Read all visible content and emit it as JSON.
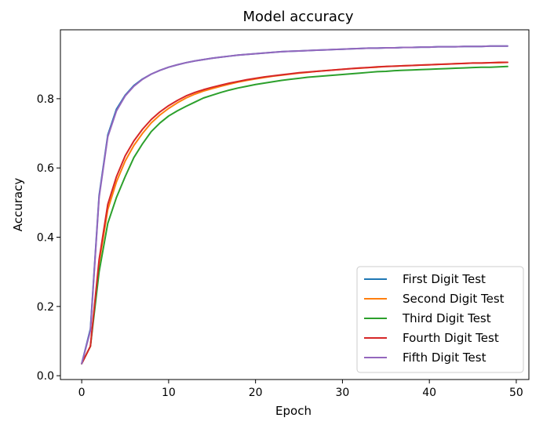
{
  "chart_data": {
    "type": "line",
    "title": "Model accuracy",
    "xlabel": "Epoch",
    "ylabel": "Accuracy",
    "xlim": [
      -2.45,
      51.45
    ],
    "ylim": [
      -0.011,
      0.999
    ],
    "xticks": [
      0,
      10,
      20,
      30,
      40,
      50
    ],
    "yticks": [
      0.0,
      0.2,
      0.4,
      0.6,
      0.8
    ],
    "grid": false,
    "legend_position": "bottom-right",
    "x": [
      0,
      1,
      2,
      3,
      4,
      5,
      6,
      7,
      8,
      9,
      10,
      11,
      12,
      13,
      14,
      15,
      16,
      17,
      18,
      19,
      20,
      21,
      22,
      23,
      24,
      25,
      26,
      27,
      28,
      29,
      30,
      31,
      32,
      33,
      34,
      35,
      36,
      37,
      38,
      39,
      40,
      41,
      42,
      43,
      44,
      45,
      46,
      47,
      48,
      49
    ],
    "series": [
      {
        "name": "First Digit Test",
        "color": "#1f77b4",
        "values": [
          0.035,
          0.135,
          0.52,
          0.695,
          0.77,
          0.81,
          0.838,
          0.857,
          0.871,
          0.882,
          0.891,
          0.898,
          0.904,
          0.909,
          0.913,
          0.917,
          0.92,
          0.923,
          0.926,
          0.928,
          0.93,
          0.932,
          0.934,
          0.936,
          0.937,
          0.938,
          0.939,
          0.94,
          0.941,
          0.942,
          0.943,
          0.944,
          0.945,
          0.946,
          0.946,
          0.947,
          0.947,
          0.948,
          0.948,
          0.949,
          0.949,
          0.95,
          0.95,
          0.95,
          0.951,
          0.951,
          0.951,
          0.952,
          0.952,
          0.952
        ]
      },
      {
        "name": "Second Digit Test",
        "color": "#ff7f0e",
        "values": [
          0.035,
          0.085,
          0.325,
          0.48,
          0.56,
          0.62,
          0.665,
          0.7,
          0.73,
          0.753,
          0.772,
          0.788,
          0.802,
          0.813,
          0.822,
          0.829,
          0.836,
          0.842,
          0.848,
          0.853,
          0.857,
          0.861,
          0.865,
          0.868,
          0.871,
          0.874,
          0.876,
          0.879,
          0.881,
          0.883,
          0.885,
          0.887,
          0.888,
          0.89,
          0.891,
          0.893,
          0.894,
          0.895,
          0.896,
          0.897,
          0.898,
          0.899,
          0.9,
          0.901,
          0.902,
          0.903,
          0.903,
          0.904,
          0.904,
          0.905
        ]
      },
      {
        "name": "Third Digit Test",
        "color": "#2ca02c",
        "values": [
          0.035,
          0.085,
          0.3,
          0.44,
          0.515,
          0.575,
          0.63,
          0.67,
          0.705,
          0.73,
          0.75,
          0.765,
          0.778,
          0.79,
          0.802,
          0.81,
          0.818,
          0.825,
          0.831,
          0.836,
          0.841,
          0.845,
          0.849,
          0.853,
          0.856,
          0.859,
          0.862,
          0.864,
          0.866,
          0.868,
          0.87,
          0.872,
          0.874,
          0.876,
          0.878,
          0.879,
          0.881,
          0.882,
          0.883,
          0.884,
          0.885,
          0.886,
          0.887,
          0.888,
          0.889,
          0.89,
          0.891,
          0.891,
          0.892,
          0.893
        ]
      },
      {
        "name": "Fourth Digit Test",
        "color": "#d62728",
        "values": [
          0.035,
          0.085,
          0.335,
          0.495,
          0.575,
          0.635,
          0.678,
          0.712,
          0.74,
          0.762,
          0.78,
          0.795,
          0.808,
          0.818,
          0.826,
          0.833,
          0.839,
          0.845,
          0.85,
          0.855,
          0.859,
          0.863,
          0.866,
          0.869,
          0.872,
          0.875,
          0.877,
          0.879,
          0.881,
          0.883,
          0.885,
          0.887,
          0.889,
          0.89,
          0.892,
          0.893,
          0.894,
          0.895,
          0.896,
          0.897,
          0.898,
          0.899,
          0.9,
          0.901,
          0.902,
          0.903,
          0.903,
          0.904,
          0.905,
          0.905
        ]
      },
      {
        "name": "Fifth Digit Test",
        "color": "#9467bd",
        "values": [
          0.035,
          0.13,
          0.515,
          0.69,
          0.765,
          0.808,
          0.836,
          0.856,
          0.871,
          0.882,
          0.891,
          0.898,
          0.904,
          0.909,
          0.913,
          0.917,
          0.92,
          0.923,
          0.926,
          0.928,
          0.93,
          0.932,
          0.934,
          0.936,
          0.937,
          0.938,
          0.939,
          0.94,
          0.941,
          0.942,
          0.943,
          0.944,
          0.945,
          0.946,
          0.946,
          0.947,
          0.947,
          0.948,
          0.948,
          0.949,
          0.949,
          0.95,
          0.95,
          0.95,
          0.951,
          0.951,
          0.951,
          0.952,
          0.952,
          0.952
        ]
      }
    ]
  }
}
